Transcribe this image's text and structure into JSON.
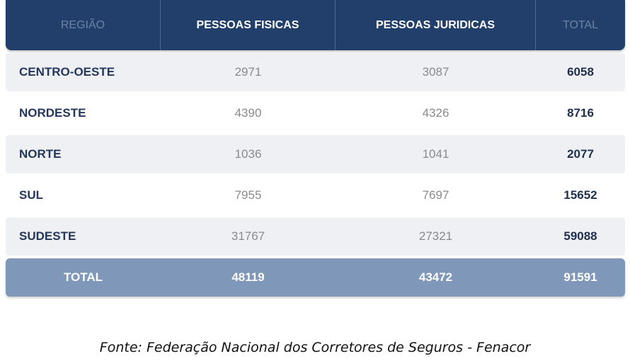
{
  "chart_data": {
    "type": "table",
    "columns": [
      "REGIÃO",
      "PESSOAS FISICAS",
      "PESSOAS JURIDICAS",
      "TOTAL"
    ],
    "rows": [
      {
        "region": "CENTRO-OESTE",
        "pf": "2971",
        "pj": "3087",
        "total": "6058"
      },
      {
        "region": "NORDESTE",
        "pf": "4390",
        "pj": "4326",
        "total": "8716"
      },
      {
        "region": "NORTE",
        "pf": "1036",
        "pj": "1041",
        "total": "2077"
      },
      {
        "region": "SUL",
        "pf": "7955",
        "pj": "7697",
        "total": "15652"
      },
      {
        "region": "SUDESTE",
        "pf": "31767",
        "pj": "27321",
        "total": "59088"
      }
    ],
    "total_row": {
      "label": "TOTAL",
      "pf": "48119",
      "pj": "43472",
      "total": "91591"
    }
  },
  "source": "Fonte: Federação Nacional dos Corretores de Seguros - Fenacor",
  "colors": {
    "header_bg": "#223f6b",
    "total_row_bg": "#7f97b8",
    "shaded_row_bg": "#eef0f4"
  }
}
